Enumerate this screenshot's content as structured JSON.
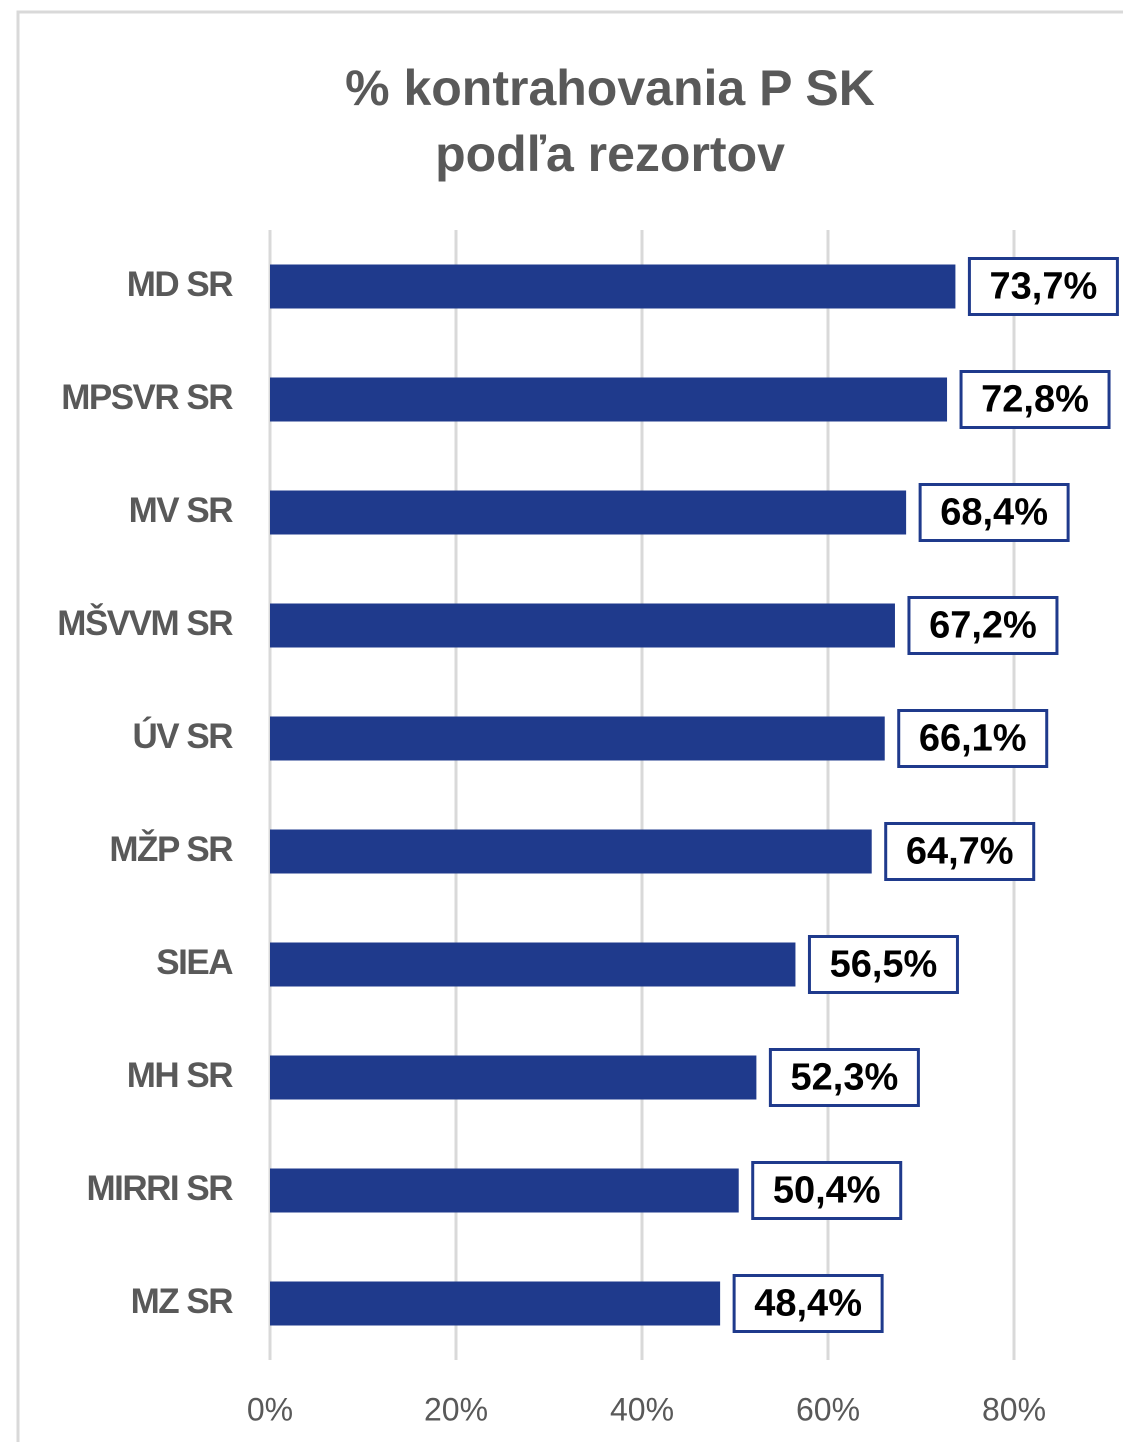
{
  "chart_data": {
    "type": "bar",
    "orientation": "horizontal",
    "title": [
      "% kontrahovania P SK",
      "podľa rezortov"
    ],
    "categories": [
      "MD SR",
      "MPSVR SR",
      "MV SR",
      "MŠVVM SR",
      "ÚV SR",
      "MŽP SR",
      "SIEA",
      "MH SR",
      "MIRRI SR",
      "MZ SR"
    ],
    "values": [
      73.7,
      72.8,
      68.4,
      67.2,
      66.1,
      64.7,
      56.5,
      52.3,
      50.4,
      48.4
    ],
    "value_labels": [
      "73,7%",
      "72,8%",
      "68,4%",
      "67,2%",
      "66,1%",
      "64,7%",
      "56,5%",
      "52,3%",
      "50,4%",
      "48,4%"
    ],
    "color": "#1f3a8c",
    "xlim": [
      0,
      90
    ],
    "xticks": [
      {
        "value": 0,
        "label": "0%"
      },
      {
        "value": 20,
        "label": "20%"
      },
      {
        "value": 40,
        "label": "40%"
      },
      {
        "value": 60,
        "label": "60%"
      },
      {
        "value": 80,
        "label": "80%"
      }
    ],
    "grid": true
  }
}
